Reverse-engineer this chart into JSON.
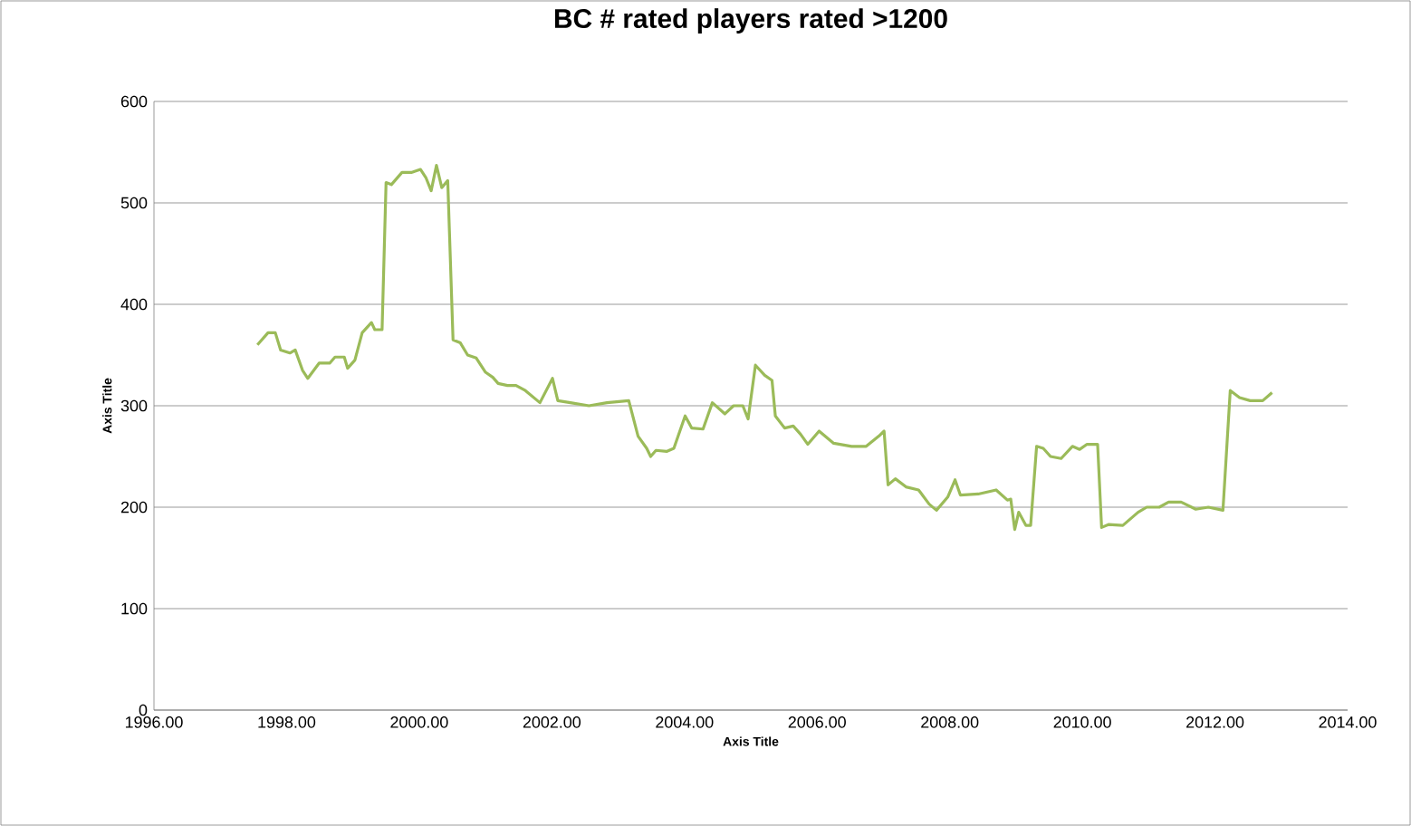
{
  "chart_data": {
    "type": "line",
    "title": "BC # rated players rated >1200",
    "xlabel": "Axis Title",
    "ylabel": "Axis Title",
    "xlim": [
      1996,
      2014
    ],
    "xticks": [
      {
        "value": 1996,
        "label": "1996.00"
      },
      {
        "value": 1998,
        "label": "1998.00"
      },
      {
        "value": 2000,
        "label": "2000.00"
      },
      {
        "value": 2002,
        "label": "2002.00"
      },
      {
        "value": 2004,
        "label": "2004.00"
      },
      {
        "value": 2006,
        "label": "2006.00"
      },
      {
        "value": 2008,
        "label": "2008.00"
      },
      {
        "value": 2010,
        "label": "2010.00"
      },
      {
        "value": 2012,
        "label": "2012.00"
      },
      {
        "value": 2014,
        "label": "2014.00"
      }
    ],
    "ylim": [
      0,
      600
    ],
    "yticks": [
      0,
      100,
      200,
      300,
      400,
      500,
      600
    ],
    "grid": "y",
    "marker": "none",
    "line_style": "solid",
    "series": [
      {
        "color": "#9bbb59",
        "x": [
          1997.56,
          1997.72,
          1997.83,
          1997.91,
          1998.05,
          1998.13,
          1998.24,
          1998.32,
          1998.49,
          1998.65,
          1998.73,
          1998.87,
          1998.92,
          1999.03,
          1999.14,
          1999.28,
          1999.33,
          1999.44,
          1999.5,
          1999.58,
          1999.74,
          1999.88,
          2000.02,
          2000.1,
          2000.18,
          2000.26,
          2000.34,
          2000.43,
          2000.51,
          2000.62,
          2000.73,
          2000.86,
          2001.0,
          2001.11,
          2001.19,
          2001.33,
          2001.46,
          2001.6,
          2001.82,
          2002.01,
          2002.09,
          2002.28,
          2002.56,
          2002.83,
          2003.16,
          2003.3,
          2003.43,
          2003.49,
          2003.57,
          2003.73,
          2003.84,
          2004.01,
          2004.11,
          2004.28,
          2004.42,
          2004.61,
          2004.74,
          2004.88,
          2004.96,
          2005.07,
          2005.21,
          2005.32,
          2005.37,
          2005.51,
          2005.64,
          2005.75,
          2005.86,
          2006.03,
          2006.25,
          2006.52,
          2006.74,
          2006.93,
          2007.01,
          2007.07,
          2007.18,
          2007.34,
          2007.53,
          2007.69,
          2007.8,
          2007.97,
          2008.08,
          2008.16,
          2008.43,
          2008.7,
          2008.87,
          2008.92,
          2008.98,
          2009.04,
          2009.15,
          2009.22,
          2009.31,
          2009.41,
          2009.52,
          2009.68,
          2009.85,
          2009.96,
          2010.07,
          2010.23,
          2010.29,
          2010.4,
          2010.61,
          2010.84,
          2010.97,
          2011.16,
          2011.3,
          2011.49,
          2011.71,
          2011.9,
          2012.12,
          2012.23,
          2012.37,
          2012.53,
          2012.72,
          2012.86
        ],
        "values": [
          360,
          372,
          372,
          355,
          352,
          355,
          335,
          327,
          342,
          342,
          348,
          348,
          337,
          345,
          372,
          382,
          375,
          375,
          520,
          518,
          530,
          530,
          533,
          525,
          512,
          537,
          515,
          522,
          365,
          362,
          350,
          347,
          333,
          328,
          322,
          320,
          320,
          315,
          303,
          327,
          305,
          303,
          300,
          303,
          305,
          270,
          258,
          250,
          256,
          255,
          258,
          290,
          278,
          277,
          303,
          292,
          300,
          300,
          287,
          340,
          330,
          325,
          290,
          278,
          280,
          272,
          262,
          275,
          263,
          260,
          260,
          270,
          275,
          222,
          228,
          220,
          217,
          203,
          197,
          210,
          227,
          212,
          213,
          217,
          207,
          208,
          178,
          195,
          182,
          182,
          260,
          258,
          250,
          248,
          260,
          257,
          262,
          262,
          180,
          183,
          182,
          195,
          200,
          200,
          205,
          205,
          198,
          200,
          197,
          315,
          308,
          305,
          305,
          313
        ]
      }
    ]
  }
}
